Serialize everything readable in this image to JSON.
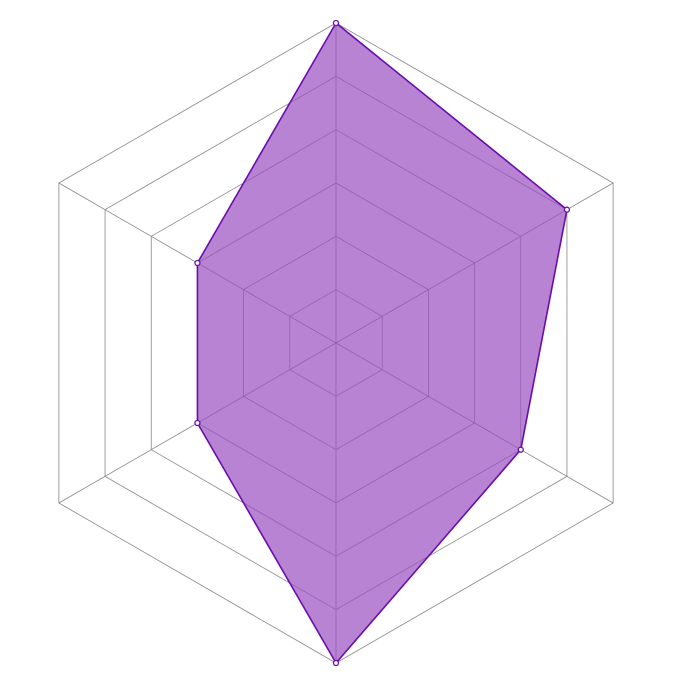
{
  "chart_data": {
    "type": "radar",
    "axes_count": 6,
    "rlim": [
      0,
      6
    ],
    "rings": 6,
    "grid": true,
    "series": [
      {
        "values": [
          6,
          5,
          4,
          6,
          3,
          3
        ]
      }
    ],
    "colors": {
      "fill": "#9b4fc0",
      "stroke": "#6a0dad",
      "grid": "#888888"
    }
  }
}
